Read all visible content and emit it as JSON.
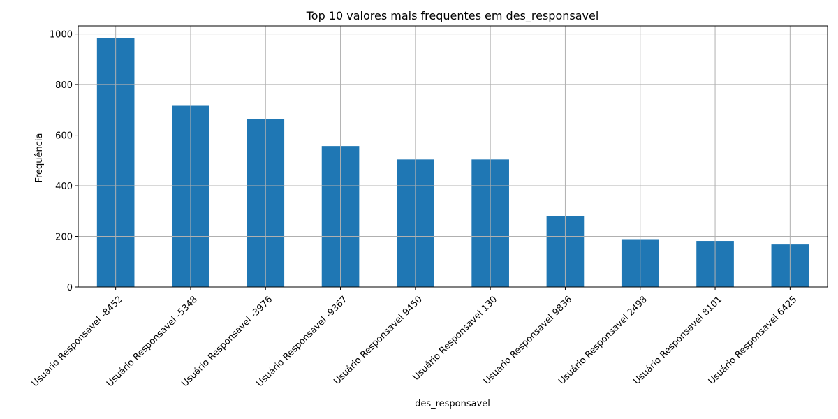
{
  "chart_data": {
    "type": "bar",
    "title": "Top 10 valores mais frequentes em des_responsavel",
    "xlabel": "des_responsavel",
    "ylabel": "Frequência",
    "categories": [
      "Usuário Responsavel -8452",
      "Usuário Responsavel -5348",
      "Usuário Responsavel -3976",
      "Usuário Responsavel -9367",
      "Usuário Responsavel 9450",
      "Usuário Responsavel 130",
      "Usuário Responsavel 9836",
      "Usuário Responsavel 2498",
      "Usuário Responsavel 8101",
      "Usuário Responsavel 6425"
    ],
    "values": [
      983,
      716,
      663,
      557,
      504,
      504,
      280,
      189,
      182,
      168
    ],
    "ylim": [
      0,
      1032
    ],
    "yticks": [
      0,
      200,
      400,
      600,
      800,
      1000
    ],
    "grid": true,
    "legend": "none",
    "bar_color": "#1f77b4",
    "grid_color": "#b0b0b0"
  }
}
